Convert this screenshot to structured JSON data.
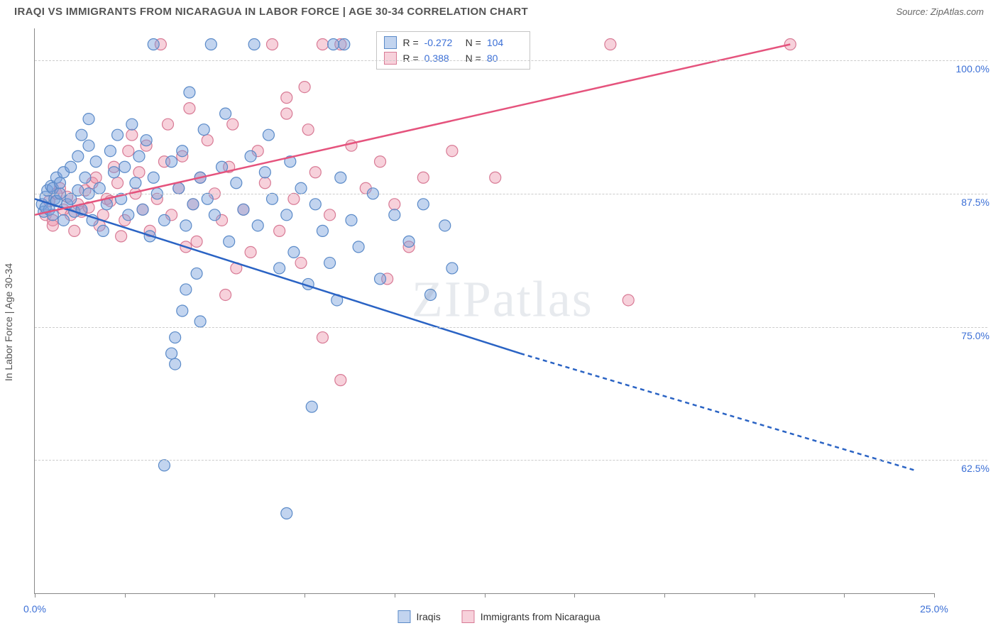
{
  "header": {
    "title": "IRAQI VS IMMIGRANTS FROM NICARAGUA IN LABOR FORCE | AGE 30-34 CORRELATION CHART",
    "source": "Source: ZipAtlas.com"
  },
  "chart": {
    "type": "scatter",
    "ylabel": "In Labor Force | Age 30-34",
    "xlim": [
      0,
      25
    ],
    "ylim": [
      50,
      103
    ],
    "xticks": [
      0,
      2.5,
      5,
      7.5,
      10,
      12.5,
      15,
      17.5,
      20,
      22.5,
      25
    ],
    "xtick_labels": {
      "0": "0.0%",
      "25": "25.0%"
    },
    "yticks": [
      62.5,
      75.0,
      87.5,
      100.0
    ],
    "ytick_labels": [
      "62.5%",
      "75.0%",
      "87.5%",
      "100.0%"
    ],
    "background_color": "#ffffff",
    "grid_color": "#cccccc",
    "axis_color": "#888888",
    "label_fontsize": 14,
    "tick_color": "#3b6fd6",
    "watermark": "ZIPatlas"
  },
  "series": {
    "iraqis": {
      "label": "Iraqis",
      "fill": "rgba(120,160,220,0.45)",
      "stroke": "#5a8ac8",
      "line_color": "#2a63c4",
      "r_value": "-0.272",
      "n_value": "104",
      "regression": {
        "x1": 0,
        "y1": 87.0,
        "x2": 13.5,
        "y2": 72.5
      },
      "regression_extrap": {
        "x1": 13.5,
        "y1": 72.5,
        "x2": 24.5,
        "y2": 61.5
      },
      "points": [
        [
          0.2,
          86.5
        ],
        [
          0.3,
          87.2
        ],
        [
          0.25,
          85.8
        ],
        [
          0.4,
          86.0
        ],
        [
          0.35,
          87.8
        ],
        [
          0.45,
          88.2
        ],
        [
          0.3,
          86.2
        ],
        [
          0.5,
          85.5
        ],
        [
          0.55,
          87.0
        ],
        [
          0.6,
          86.8
        ],
        [
          0.5,
          88.0
        ],
        [
          0.7,
          87.5
        ],
        [
          0.6,
          89.0
        ],
        [
          0.8,
          85.0
        ],
        [
          0.9,
          86.5
        ],
        [
          0.7,
          88.5
        ],
        [
          1.0,
          87.0
        ],
        [
          0.8,
          89.5
        ],
        [
          1.1,
          85.8
        ],
        [
          1.2,
          87.8
        ],
        [
          1.0,
          90.0
        ],
        [
          1.3,
          86.0
        ],
        [
          1.4,
          89.0
        ],
        [
          1.2,
          91.0
        ],
        [
          1.5,
          87.5
        ],
        [
          1.6,
          85.0
        ],
        [
          1.5,
          92.0
        ],
        [
          1.8,
          88.0
        ],
        [
          1.7,
          90.5
        ],
        [
          2.0,
          86.5
        ],
        [
          1.9,
          84.0
        ],
        [
          2.2,
          89.5
        ],
        [
          2.1,
          91.5
        ],
        [
          2.4,
          87.0
        ],
        [
          2.3,
          93.0
        ],
        [
          2.6,
          85.5
        ],
        [
          2.5,
          90.0
        ],
        [
          2.8,
          88.5
        ],
        [
          2.7,
          94.0
        ],
        [
          3.0,
          86.0
        ],
        [
          2.9,
          91.0
        ],
        [
          3.2,
          83.5
        ],
        [
          3.1,
          92.5
        ],
        [
          3.4,
          87.5
        ],
        [
          3.3,
          101.5
        ],
        [
          3.3,
          89.0
        ],
        [
          3.6,
          85.0
        ],
        [
          1.3,
          93.0
        ],
        [
          3.8,
          90.5
        ],
        [
          1.5,
          94.5
        ],
        [
          4.0,
          88.0
        ],
        [
          4.2,
          84.5
        ],
        [
          4.1,
          91.5
        ],
        [
          4.4,
          86.5
        ],
        [
          4.3,
          97.0
        ],
        [
          4.6,
          89.0
        ],
        [
          3.9,
          71.5
        ],
        [
          4.8,
          87.0
        ],
        [
          4.7,
          93.5
        ],
        [
          5.0,
          85.5
        ],
        [
          4.9,
          101.5
        ],
        [
          5.2,
          90.0
        ],
        [
          3.6,
          62.0
        ],
        [
          5.4,
          83.0
        ],
        [
          5.3,
          95.0
        ],
        [
          5.6,
          88.5
        ],
        [
          4.2,
          78.5
        ],
        [
          5.8,
          86.0
        ],
        [
          4.5,
          80.0
        ],
        [
          6.0,
          91.0
        ],
        [
          4.1,
          76.5
        ],
        [
          6.2,
          84.5
        ],
        [
          6.1,
          101.5
        ],
        [
          6.4,
          89.5
        ],
        [
          6.6,
          87.0
        ],
        [
          6.5,
          93.0
        ],
        [
          6.8,
          80.5
        ],
        [
          7.0,
          85.5
        ],
        [
          7.2,
          82.0
        ],
        [
          7.1,
          90.5
        ],
        [
          7.4,
          88.0
        ],
        [
          7.6,
          79.0
        ],
        [
          7.8,
          86.5
        ],
        [
          7.7,
          67.5
        ],
        [
          8.0,
          84.0
        ],
        [
          8.3,
          101.5
        ],
        [
          7.0,
          57.5
        ],
        [
          8.2,
          81.0
        ],
        [
          8.5,
          89.0
        ],
        [
          8.4,
          77.5
        ],
        [
          8.8,
          85.0
        ],
        [
          8.6,
          101.5
        ],
        [
          9.0,
          82.5
        ],
        [
          3.9,
          74.0
        ],
        [
          9.4,
          87.5
        ],
        [
          9.6,
          79.5
        ],
        [
          4.6,
          75.5
        ],
        [
          10.0,
          85.5
        ],
        [
          3.8,
          72.5
        ],
        [
          10.4,
          83.0
        ],
        [
          10.8,
          86.5
        ],
        [
          11.0,
          78.0
        ],
        [
          11.4,
          84.5
        ],
        [
          11.6,
          80.5
        ]
      ]
    },
    "nicaragua": {
      "label": "Immigrants from Nicaragua",
      "fill": "rgba(235,140,165,0.40)",
      "stroke": "#d87a95",
      "line_color": "#e5537d",
      "r_value": "0.388",
      "n_value": "80",
      "regression": {
        "x1": 0,
        "y1": 85.5,
        "x2": 21.0,
        "y2": 101.5
      },
      "points": [
        [
          0.3,
          85.5
        ],
        [
          0.4,
          86.8
        ],
        [
          0.5,
          85.0
        ],
        [
          0.6,
          87.5
        ],
        [
          0.5,
          84.5
        ],
        [
          0.8,
          86.0
        ],
        [
          0.7,
          88.0
        ],
        [
          1.0,
          85.5
        ],
        [
          0.9,
          87.2
        ],
        [
          1.2,
          86.5
        ],
        [
          1.1,
          84.0
        ],
        [
          1.4,
          87.8
        ],
        [
          1.3,
          85.8
        ],
        [
          1.6,
          88.5
        ],
        [
          1.5,
          86.2
        ],
        [
          1.8,
          84.5
        ],
        [
          1.7,
          89.0
        ],
        [
          2.0,
          87.0
        ],
        [
          1.9,
          85.5
        ],
        [
          2.2,
          90.0
        ],
        [
          2.1,
          86.8
        ],
        [
          2.4,
          83.5
        ],
        [
          2.3,
          88.5
        ],
        [
          2.6,
          91.5
        ],
        [
          2.5,
          85.0
        ],
        [
          2.8,
          87.5
        ],
        [
          2.7,
          93.0
        ],
        [
          3.0,
          86.0
        ],
        [
          2.9,
          89.5
        ],
        [
          3.2,
          84.0
        ],
        [
          3.1,
          92.0
        ],
        [
          3.4,
          87.0
        ],
        [
          3.6,
          90.5
        ],
        [
          3.5,
          101.5
        ],
        [
          3.8,
          85.5
        ],
        [
          3.7,
          94.0
        ],
        [
          4.0,
          88.0
        ],
        [
          4.2,
          82.5
        ],
        [
          4.1,
          91.0
        ],
        [
          4.4,
          86.5
        ],
        [
          4.3,
          95.5
        ],
        [
          4.6,
          89.0
        ],
        [
          4.5,
          83.0
        ],
        [
          4.8,
          92.5
        ],
        [
          5.0,
          87.5
        ],
        [
          5.2,
          85.0
        ],
        [
          5.3,
          78.0
        ],
        [
          5.4,
          90.0
        ],
        [
          5.6,
          80.5
        ],
        [
          5.5,
          94.0
        ],
        [
          5.8,
          86.0
        ],
        [
          6.0,
          82.0
        ],
        [
          6.2,
          91.5
        ],
        [
          6.4,
          88.5
        ],
        [
          6.6,
          101.5
        ],
        [
          6.8,
          84.0
        ],
        [
          7.0,
          95.0
        ],
        [
          7.2,
          87.0
        ],
        [
          7.4,
          81.0
        ],
        [
          7.6,
          93.5
        ],
        [
          7.8,
          89.5
        ],
        [
          8.0,
          101.5
        ],
        [
          8.2,
          85.5
        ],
        [
          8.5,
          101.5
        ],
        [
          8.8,
          92.0
        ],
        [
          7.0,
          96.5
        ],
        [
          9.2,
          88.0
        ],
        [
          7.5,
          97.5
        ],
        [
          9.6,
          90.5
        ],
        [
          8.0,
          74.0
        ],
        [
          10.0,
          86.5
        ],
        [
          10.4,
          82.5
        ],
        [
          10.8,
          89.0
        ],
        [
          9.8,
          79.5
        ],
        [
          11.6,
          91.5
        ],
        [
          8.5,
          70.0
        ],
        [
          12.8,
          89.0
        ],
        [
          16.0,
          101.5
        ],
        [
          16.5,
          77.5
        ],
        [
          21.0,
          101.5
        ]
      ]
    }
  },
  "legend": {
    "r_label": "R =",
    "n_label": "N ="
  }
}
